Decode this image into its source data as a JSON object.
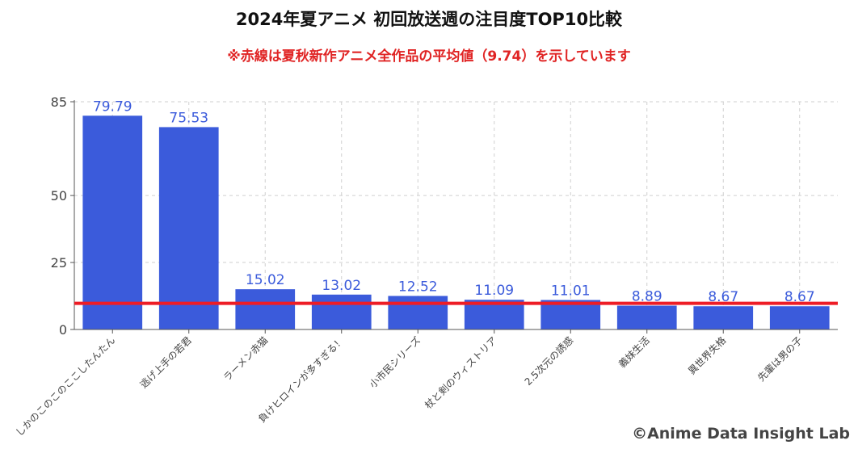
{
  "title": "2024年夏アニメ 初回放送週の注目度TOP10比較",
  "subtitle": "※赤線は夏秋新作アニメ全作品の平均値（9.74）を示しています",
  "credit": "©Anime Data Insight Lab",
  "chart_data": {
    "type": "bar",
    "title": "2024年夏アニメ 初回放送週の注目度TOP10比較",
    "subtitle": "※赤線は夏秋新作アニメ全作品の平均値（9.74）を示しています",
    "categories": [
      "しかのこのこのここしたんたん",
      "逃げ上手の若君",
      "ラーメン赤猫",
      "負けヒロインが多すぎる！",
      "小市民シリーズ",
      "杖と剣のウィストリア",
      "2.5次元の誘惑",
      "義妹生活",
      "異世界失格",
      "先輩は男の子"
    ],
    "values": [
      79.79,
      75.53,
      15.02,
      13.02,
      12.52,
      11.09,
      11.01,
      8.89,
      8.67,
      8.67
    ],
    "value_labels": [
      "79.79",
      "75.53",
      "15.02",
      "13.02",
      "12.52",
      "11.09",
      "11.01",
      "8.89",
      "8.67",
      "8.67"
    ],
    "yticks": [
      0,
      25,
      50,
      85
    ],
    "ylim": [
      0,
      85
    ],
    "reference_line": 9.74,
    "grid": true,
    "bar_color": "#3b5bdb",
    "line_color": "#ee1c25",
    "xlabel": "",
    "ylabel": ""
  }
}
